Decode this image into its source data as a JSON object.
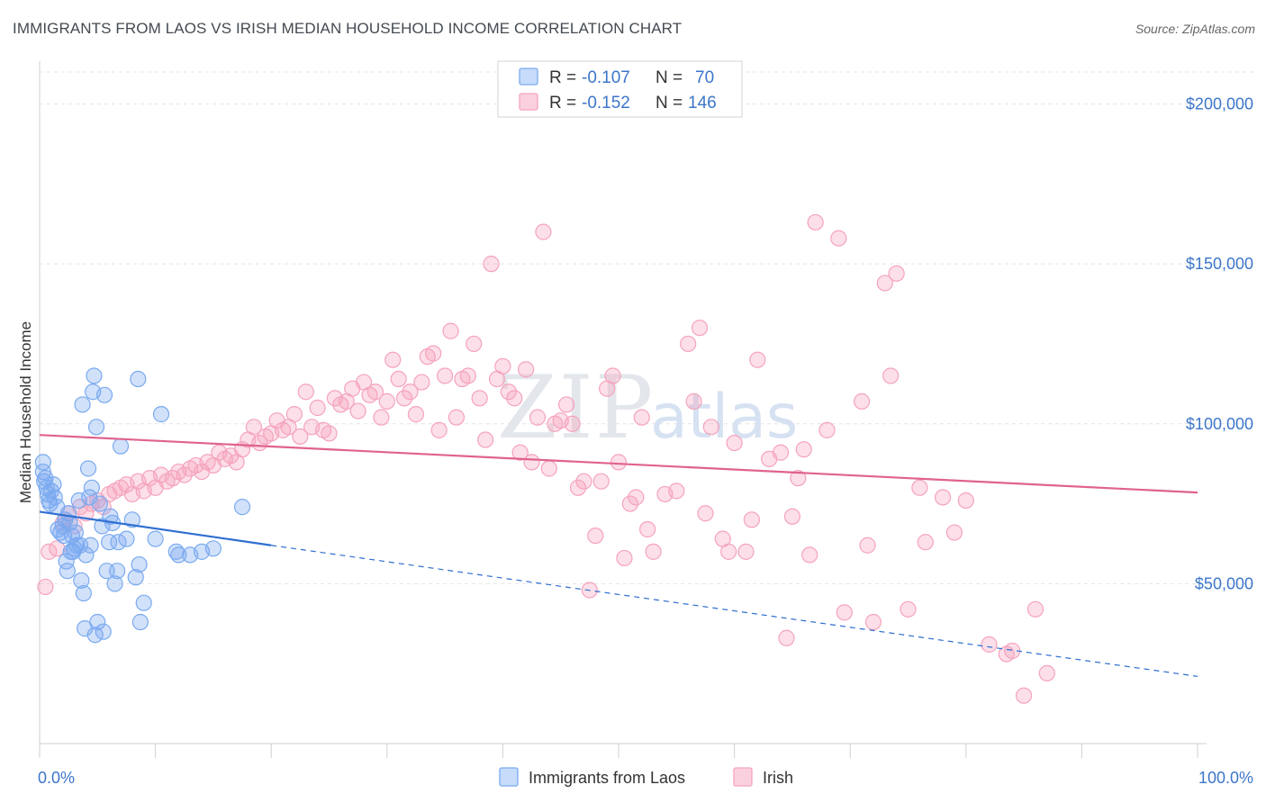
{
  "title": "IMMIGRANTS FROM LAOS VS IRISH MEDIAN HOUSEHOLD INCOME CORRELATION CHART",
  "source": "Source: ZipAtlas.com",
  "watermark": {
    "zip": "ZIP",
    "atlas": "atlas"
  },
  "chart_data": {
    "type": "scatter",
    "title": "IMMIGRANTS FROM LAOS VS IRISH MEDIAN HOUSEHOLD INCOME CORRELATION CHART",
    "xlabel": "",
    "ylabel": "Median Household Income",
    "xlim": [
      0,
      100
    ],
    "ylim": [
      0,
      210000
    ],
    "x_tick_labels": {
      "left": "0.0%",
      "right": "100.0%"
    },
    "y_ticks": [
      {
        "value": 50000,
        "label": "$50,000"
      },
      {
        "value": 100000,
        "label": "$100,000"
      },
      {
        "value": 150000,
        "label": "$150,000"
      },
      {
        "value": 200000,
        "label": "$200,000"
      }
    ],
    "grid": true,
    "legend_position": "top-center",
    "legend": [
      {
        "r_label": "R = ",
        "r_value": "-0.107",
        "n_label": "N = ",
        "n_value": "70",
        "color": "#7aaaf0"
      },
      {
        "r_label": "R = ",
        "r_value": "-0.152",
        "n_label": "N = ",
        "n_value": "146",
        "color": "#f5a3bd"
      }
    ],
    "series": [
      {
        "name": "Immigrants from Laos",
        "color": "#7aaaf0",
        "line_color": "#2f6fd1",
        "trend": {
          "x0": 0,
          "y0": 72500,
          "x1": 20,
          "y1": 62000,
          "x_dash_end": 100,
          "y_dash_end": 21000
        },
        "points": [
          [
            0.3,
            88000
          ],
          [
            0.3,
            85000
          ],
          [
            0.4,
            82000
          ],
          [
            0.5,
            83000
          ],
          [
            0.6,
            80000
          ],
          [
            0.7,
            78000
          ],
          [
            0.8,
            76000
          ],
          [
            0.9,
            75000
          ],
          [
            1.0,
            79000
          ],
          [
            1.2,
            81000
          ],
          [
            1.3,
            77000
          ],
          [
            1.5,
            74000
          ],
          [
            1.6,
            67000
          ],
          [
            1.8,
            66000
          ],
          [
            2.0,
            68000
          ],
          [
            2.1,
            65000
          ],
          [
            2.2,
            70000
          ],
          [
            2.3,
            57000
          ],
          [
            2.4,
            54000
          ],
          [
            2.5,
            72000
          ],
          [
            2.6,
            69000
          ],
          [
            2.7,
            60000
          ],
          [
            2.8,
            65000
          ],
          [
            2.9,
            60000
          ],
          [
            3.0,
            61000
          ],
          [
            3.1,
            66000
          ],
          [
            3.2,
            62000
          ],
          [
            3.4,
            76000
          ],
          [
            3.5,
            62000
          ],
          [
            3.6,
            51000
          ],
          [
            3.7,
            106000
          ],
          [
            3.8,
            47000
          ],
          [
            3.9,
            36000
          ],
          [
            4.0,
            59000
          ],
          [
            4.2,
            86000
          ],
          [
            4.3,
            77000
          ],
          [
            4.4,
            62000
          ],
          [
            4.5,
            80000
          ],
          [
            4.6,
            110000
          ],
          [
            4.7,
            115000
          ],
          [
            4.8,
            34000
          ],
          [
            4.9,
            99000
          ],
          [
            5.0,
            38000
          ],
          [
            5.2,
            75000
          ],
          [
            5.4,
            68000
          ],
          [
            5.5,
            35000
          ],
          [
            5.6,
            109000
          ],
          [
            5.8,
            54000
          ],
          [
            6.0,
            63000
          ],
          [
            6.1,
            71000
          ],
          [
            6.3,
            69000
          ],
          [
            6.5,
            50000
          ],
          [
            6.7,
            54000
          ],
          [
            6.8,
            63000
          ],
          [
            7.0,
            93000
          ],
          [
            7.5,
            64000
          ],
          [
            8.0,
            70000
          ],
          [
            8.3,
            52000
          ],
          [
            8.5,
            114000
          ],
          [
            8.6,
            56000
          ],
          [
            8.7,
            38000
          ],
          [
            9.0,
            44000
          ],
          [
            10.0,
            64000
          ],
          [
            10.5,
            103000
          ],
          [
            11.8,
            60000
          ],
          [
            12.0,
            59000
          ],
          [
            13.0,
            59000
          ],
          [
            14.0,
            60000
          ],
          [
            15.0,
            61000
          ],
          [
            17.5,
            74000
          ]
        ]
      },
      {
        "name": "Irish",
        "color": "#f5a3bd",
        "line_color": "#e0628e",
        "trend": {
          "x0": 0,
          "y0": 96500,
          "x1": 100,
          "y1": 78500
        },
        "points": [
          [
            0.5,
            49000
          ],
          [
            0.8,
            60000
          ],
          [
            1.5,
            61000
          ],
          [
            2.0,
            69000
          ],
          [
            2.2,
            70000
          ],
          [
            2.5,
            72000
          ],
          [
            3.0,
            68000
          ],
          [
            3.5,
            74000
          ],
          [
            4.0,
            72000
          ],
          [
            4.5,
            75000
          ],
          [
            5.0,
            76000
          ],
          [
            5.5,
            74000
          ],
          [
            6.0,
            78000
          ],
          [
            6.5,
            79000
          ],
          [
            7.0,
            80000
          ],
          [
            7.5,
            81000
          ],
          [
            8.0,
            78000
          ],
          [
            8.5,
            82000
          ],
          [
            9.0,
            79000
          ],
          [
            9.5,
            83000
          ],
          [
            10.0,
            80000
          ],
          [
            10.5,
            84000
          ],
          [
            11.0,
            82000
          ],
          [
            11.5,
            83000
          ],
          [
            12.0,
            85000
          ],
          [
            12.5,
            84000
          ],
          [
            13.0,
            86000
          ],
          [
            13.5,
            87000
          ],
          [
            14.0,
            85000
          ],
          [
            14.5,
            88000
          ],
          [
            15.0,
            87000
          ],
          [
            15.5,
            91000
          ],
          [
            16.0,
            89000
          ],
          [
            16.5,
            90000
          ],
          [
            17.0,
            88000
          ],
          [
            17.5,
            92000
          ],
          [
            18.0,
            95000
          ],
          [
            18.5,
            99000
          ],
          [
            19.0,
            94000
          ],
          [
            19.5,
            96000
          ],
          [
            20.0,
            97000
          ],
          [
            20.5,
            101000
          ],
          [
            21.0,
            98000
          ],
          [
            21.5,
            99000
          ],
          [
            22.0,
            103000
          ],
          [
            22.5,
            96000
          ],
          [
            23.0,
            110000
          ],
          [
            23.5,
            99000
          ],
          [
            24.0,
            105000
          ],
          [
            24.5,
            98000
          ],
          [
            25.0,
            97000
          ],
          [
            25.5,
            108000
          ],
          [
            26.0,
            106000
          ],
          [
            26.5,
            107000
          ],
          [
            27.0,
            111000
          ],
          [
            27.5,
            104000
          ],
          [
            28.0,
            113000
          ],
          [
            28.5,
            109000
          ],
          [
            29.0,
            110000
          ],
          [
            29.5,
            102000
          ],
          [
            30.0,
            107000
          ],
          [
            30.5,
            120000
          ],
          [
            31.0,
            114000
          ],
          [
            31.5,
            108000
          ],
          [
            32.0,
            110000
          ],
          [
            32.5,
            103000
          ],
          [
            33.0,
            113000
          ],
          [
            33.5,
            121000
          ],
          [
            34.0,
            122000
          ],
          [
            34.5,
            98000
          ],
          [
            35.0,
            115000
          ],
          [
            35.5,
            129000
          ],
          [
            36.0,
            102000
          ],
          [
            36.5,
            114000
          ],
          [
            37.0,
            115000
          ],
          [
            37.5,
            125000
          ],
          [
            38.0,
            108000
          ],
          [
            38.5,
            95000
          ],
          [
            39.0,
            150000
          ],
          [
            39.5,
            114000
          ],
          [
            40.0,
            118000
          ],
          [
            40.5,
            110000
          ],
          [
            41.0,
            108000
          ],
          [
            41.5,
            91000
          ],
          [
            42.0,
            117000
          ],
          [
            42.5,
            88000
          ],
          [
            43.0,
            102000
          ],
          [
            43.5,
            160000
          ],
          [
            44.0,
            86000
          ],
          [
            44.5,
            100000
          ],
          [
            45.0,
            101000
          ],
          [
            45.5,
            106000
          ],
          [
            46.0,
            100000
          ],
          [
            46.5,
            80000
          ],
          [
            47.0,
            82000
          ],
          [
            47.5,
            48000
          ],
          [
            48.0,
            65000
          ],
          [
            48.5,
            82000
          ],
          [
            49.0,
            111000
          ],
          [
            49.5,
            115000
          ],
          [
            50.0,
            88000
          ],
          [
            50.5,
            58000
          ],
          [
            51.0,
            75000
          ],
          [
            51.5,
            77000
          ],
          [
            52.0,
            102000
          ],
          [
            52.5,
            67000
          ],
          [
            53.0,
            60000
          ],
          [
            54.0,
            78000
          ],
          [
            55.0,
            79000
          ],
          [
            56.0,
            125000
          ],
          [
            56.5,
            107000
          ],
          [
            57.0,
            130000
          ],
          [
            57.5,
            72000
          ],
          [
            58.0,
            99000
          ],
          [
            59.0,
            64000
          ],
          [
            59.5,
            60000
          ],
          [
            60.0,
            94000
          ],
          [
            61.0,
            60000
          ],
          [
            61.5,
            70000
          ],
          [
            62.0,
            120000
          ],
          [
            63.0,
            89000
          ],
          [
            64.0,
            91000
          ],
          [
            64.5,
            33000
          ],
          [
            65.0,
            71000
          ],
          [
            65.5,
            83000
          ],
          [
            66.0,
            92000
          ],
          [
            66.5,
            59000
          ],
          [
            67.0,
            163000
          ],
          [
            68.0,
            98000
          ],
          [
            69.0,
            158000
          ],
          [
            69.5,
            41000
          ],
          [
            71.0,
            107000
          ],
          [
            71.5,
            62000
          ],
          [
            72.0,
            38000
          ],
          [
            73.0,
            144000
          ],
          [
            73.5,
            115000
          ],
          [
            74.0,
            147000
          ],
          [
            75.0,
            42000
          ],
          [
            76.0,
            80000
          ],
          [
            76.5,
            63000
          ],
          [
            78.0,
            77000
          ],
          [
            79.0,
            66000
          ],
          [
            80.0,
            76000
          ],
          [
            82.0,
            31000
          ],
          [
            83.5,
            28000
          ],
          [
            84.0,
            29000
          ],
          [
            85.0,
            15000
          ],
          [
            86.0,
            42000
          ],
          [
            87.0,
            22000
          ]
        ]
      }
    ]
  },
  "bottom_legend": [
    {
      "label": "Immigrants from Laos",
      "color": "#7aaaf0"
    },
    {
      "label": "Irish",
      "color": "#f5a3bd"
    }
  ]
}
